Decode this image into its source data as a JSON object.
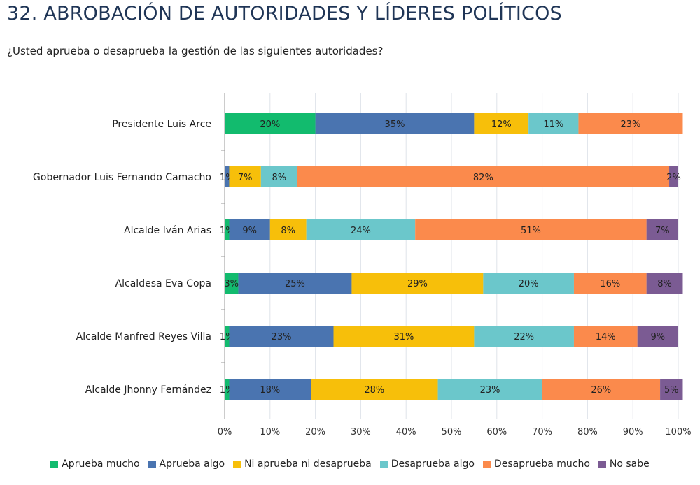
{
  "title": "32. ABROBACIÓN DE AUTORIDADES Y LÍDERES POLÍTICOS",
  "subtitle": "¿Usted aprueba o desaprueba la gestión de las siguientes autoridades?",
  "chart_data": {
    "type": "bar",
    "orientation": "horizontal",
    "stacked": "percent",
    "categories": [
      "Presidente Luis Arce",
      "Gobernador Luis Fernando Camacho",
      "Alcalde Iván Arias",
      "Alcaldesa Eva Copa",
      "Alcalde Manfred Reyes Villa",
      "Alcalde Jhonny Fernández"
    ],
    "series": [
      {
        "name": "Aprueba mucho",
        "color": "#12bb6e",
        "values": [
          20,
          0,
          1,
          3,
          1,
          1
        ]
      },
      {
        "name": "Aprueba algo",
        "color": "#4a74b0",
        "values": [
          35,
          1,
          9,
          25,
          23,
          18
        ]
      },
      {
        "name": "Ni aprueba ni desaprueba",
        "color": "#f7bf0a",
        "values": [
          12,
          7,
          8,
          29,
          31,
          28
        ]
      },
      {
        "name": "Desaprueba algo",
        "color": "#6bc7cb",
        "values": [
          11,
          8,
          24,
          20,
          22,
          23
        ]
      },
      {
        "name": "Desaprueba mucho",
        "color": "#fb8a4c",
        "values": [
          23,
          82,
          51,
          16,
          14,
          26
        ]
      },
      {
        "name": "No sabe",
        "color": "#7b5b93",
        "values": [
          0,
          2,
          7,
          8,
          9,
          5
        ]
      }
    ],
    "xticks": [
      "0%",
      "10%",
      "20%",
      "30%",
      "40%",
      "50%",
      "60%",
      "70%",
      "80%",
      "90%",
      "100%"
    ],
    "xlim": [
      0,
      100
    ],
    "grid": true,
    "legend": "bottom"
  }
}
